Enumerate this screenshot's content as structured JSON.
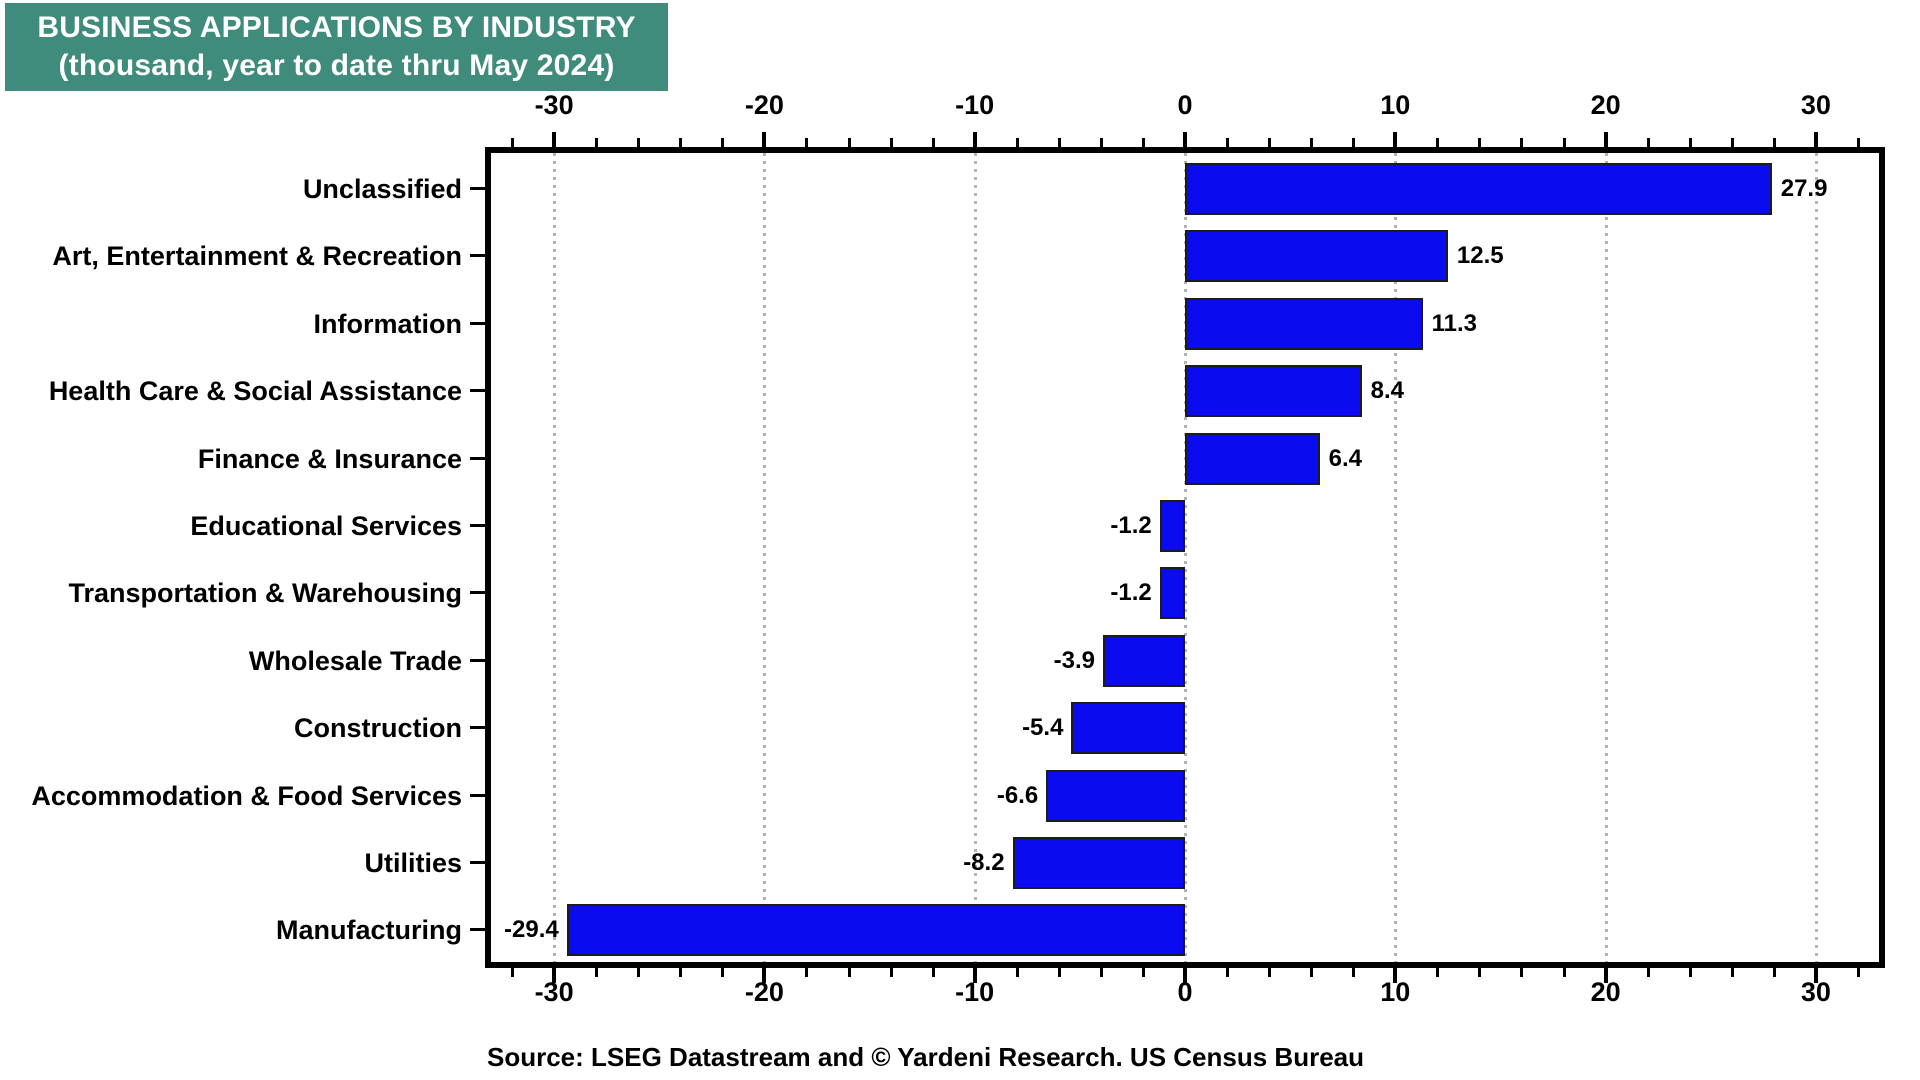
{
  "title": {
    "line1": "BUSINESS APPLICATIONS BY INDUSTRY",
    "line2": "(thousand, year to date thru May 2024)",
    "bg_color": "#3f8c7d",
    "text_color": "#ffffff"
  },
  "source": "Source: LSEG Datastream and © Yardeni Research. US Census Bureau",
  "chart_data": {
    "type": "bar",
    "orientation": "horizontal",
    "title": "BUSINESS APPLICATIONS BY INDUSTRY",
    "subtitle": "(thousand, year to date thru May 2024)",
    "unit": "thousand",
    "categories": [
      "Unclassified",
      "Art, Entertainment & Recreation",
      "Information",
      "Health Care & Social Assistance",
      "Finance & Insurance",
      "Educational Services",
      "Transportation & Warehousing",
      "Wholesale Trade",
      "Construction",
      "Accommodation & Food Services",
      "Utilities",
      "Manufacturing"
    ],
    "values": [
      27.9,
      12.5,
      11.3,
      8.4,
      6.4,
      -1.2,
      -1.2,
      -3.9,
      -5.4,
      -6.6,
      -8.2,
      -29.4
    ],
    "value_labels": [
      "27.9",
      "12.5",
      "11.3",
      "8.4",
      "6.4",
      "-1.2",
      "-1.2",
      "-3.9",
      "-5.4",
      "-6.6",
      "-8.2",
      "-29.4"
    ],
    "xlim": [
      -33,
      33
    ],
    "x_major_ticks": [
      -30,
      -20,
      -10,
      0,
      10,
      20,
      30
    ],
    "x_major_tick_labels": [
      "-30",
      "-20",
      "-10",
      "0",
      "10",
      "20",
      "30"
    ],
    "x_minor_tick_step": 2,
    "grid": "vertical dotted gridlines at major ticks",
    "legend": "none",
    "bar_color": "#0b0bef",
    "bar_border_color": "#1c1c1c",
    "grid_color": "#b3b3b3",
    "axis_color": "#000000"
  }
}
